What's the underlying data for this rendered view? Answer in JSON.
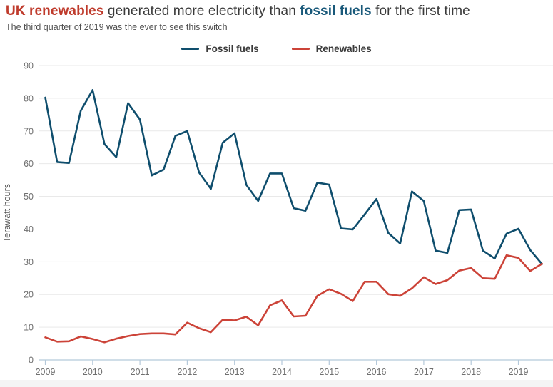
{
  "title": {
    "part1": "UK renewables",
    "part2": " generated more electricity than ",
    "part3": "fossil fuels",
    "part4": " for the first time"
  },
  "subtitle": "The third quarter of 2019 was the ever to see this switch",
  "colors": {
    "title_red": "#bf3b2c",
    "title_blue": "#19597a",
    "line_fossil": "#0f4e6d",
    "line_renewables": "#cc4338",
    "grid": "#e9e9e9",
    "axis": "#b5c9da",
    "tick_text": "#6f6f6f",
    "axis_title_text": "#565656"
  },
  "legend": {
    "items": [
      {
        "label": "Fossil fuels",
        "color": "#0f4e6d"
      },
      {
        "label": "Renewables",
        "color": "#cc4338"
      }
    ]
  },
  "chart_data": {
    "type": "line",
    "title": "UK renewables generated more electricity than fossil fuels for the first time",
    "subtitle": "The third quarter of 2019 was the ever to see this switch",
    "ylabel": "Terawatt hours",
    "xlabel": "",
    "ylim": [
      0,
      93
    ],
    "grid": "horizontal",
    "legend_position": "top-center",
    "y_ticks": [
      0,
      10,
      20,
      30,
      40,
      50,
      60,
      70,
      80,
      90
    ],
    "x_ticks": [
      "2009",
      "2010",
      "2011",
      "2012",
      "2013",
      "2014",
      "2015",
      "2016",
      "2017",
      "2018",
      "2019"
    ],
    "x": [
      "2009 Q1",
      "2009 Q2",
      "2009 Q3",
      "2009 Q4",
      "2010 Q1",
      "2010 Q2",
      "2010 Q3",
      "2010 Q4",
      "2011 Q1",
      "2011 Q2",
      "2011 Q3",
      "2011 Q4",
      "2012 Q1",
      "2012 Q2",
      "2012 Q3",
      "2012 Q4",
      "2013 Q1",
      "2013 Q2",
      "2013 Q3",
      "2013 Q4",
      "2014 Q1",
      "2014 Q2",
      "2014 Q3",
      "2014 Q4",
      "2015 Q1",
      "2015 Q2",
      "2015 Q3",
      "2015 Q4",
      "2016 Q1",
      "2016 Q2",
      "2016 Q3",
      "2016 Q4",
      "2017 Q1",
      "2017 Q2",
      "2017 Q3",
      "2017 Q4",
      "2018 Q1",
      "2018 Q2",
      "2018 Q3",
      "2018 Q4",
      "2019 Q1",
      "2019 Q2",
      "2019 Q3"
    ],
    "series": [
      {
        "name": "Fossil fuels",
        "color": "#0f4e6d",
        "values": [
          80.2,
          60.5,
          60.2,
          76.2,
          82.5,
          66.0,
          62.0,
          78.5,
          73.5,
          56.4,
          58.2,
          68.5,
          70.0,
          57.3,
          52.3,
          66.4,
          69.3,
          53.5,
          48.6,
          57.0,
          57.0,
          46.4,
          45.6,
          54.2,
          53.6,
          40.2,
          39.9,
          44.5,
          49.2,
          38.8,
          35.6,
          51.5,
          48.6,
          33.4,
          32.7,
          45.8,
          46.0,
          33.4,
          31.0,
          38.6,
          40.1,
          33.6,
          29.3
        ]
      },
      {
        "name": "Renewables",
        "color": "#cc4338",
        "values": [
          6.9,
          5.6,
          5.7,
          7.2,
          6.4,
          5.4,
          6.5,
          7.3,
          7.9,
          8.1,
          8.1,
          7.8,
          11.4,
          9.7,
          8.5,
          12.3,
          12.1,
          13.2,
          10.6,
          16.7,
          18.2,
          13.3,
          13.5,
          19.6,
          21.6,
          20.2,
          18.0,
          23.9,
          23.9,
          20.1,
          19.6,
          21.9,
          25.3,
          23.2,
          24.4,
          27.3,
          28.1,
          25.0,
          24.8,
          32.0,
          31.2,
          27.2,
          29.4
        ]
      }
    ]
  }
}
